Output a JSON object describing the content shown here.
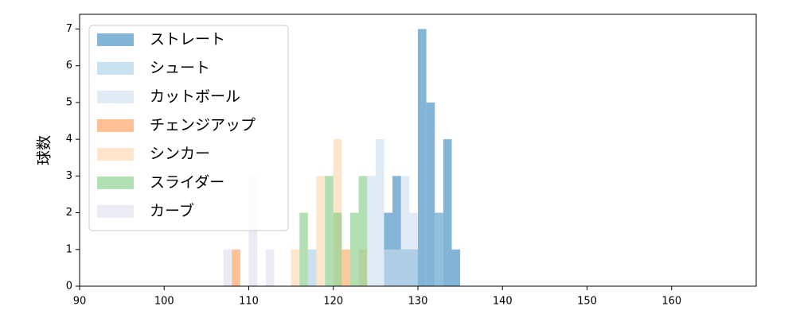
{
  "chart_data": {
    "type": "histogram",
    "y_label": "球数",
    "xlim": [
      90,
      170
    ],
    "xticks": [
      90,
      100,
      110,
      120,
      130,
      140,
      150,
      160
    ],
    "ylim": [
      0,
      7.4
    ],
    "yticks": [
      0,
      1,
      2,
      3,
      4,
      5,
      6,
      7
    ],
    "legend": "upper left",
    "series": [
      {
        "name": "ストレート",
        "color": "#1f77b4",
        "bins": [
          126,
          127,
          128,
          129,
          130,
          131,
          132,
          133,
          134,
          135
        ],
        "values": [
          2,
          3,
          1,
          1,
          7,
          5,
          2,
          4,
          1
        ]
      },
      {
        "name": "シュート",
        "color": "#9ecae1",
        "bins": [
          117,
          118,
          119,
          120,
          121,
          122,
          123,
          124,
          125,
          126,
          127,
          128,
          129,
          130,
          131,
          132,
          133
        ],
        "values": [
          1,
          0,
          0,
          0,
          0,
          0,
          0,
          0,
          0,
          1,
          1,
          1,
          1,
          0,
          0,
          2
        ]
      },
      {
        "name": "カットボール",
        "color": "#c6dbef",
        "bins": [
          124,
          125,
          126,
          127,
          128,
          129,
          130
        ],
        "values": [
          3,
          4,
          1,
          1,
          3,
          2
        ]
      },
      {
        "name": "チェンジアップ",
        "color": "#fd8d3c",
        "bins": [
          108,
          109,
          110,
          111,
          112,
          113,
          114,
          115,
          116,
          117,
          118,
          119,
          120,
          121,
          122
        ],
        "values": [
          1,
          0,
          0,
          0,
          0,
          0,
          0,
          0,
          0,
          0,
          0,
          0,
          0,
          1
        ]
      },
      {
        "name": "シンカー",
        "color": "#fdd0a2",
        "bins": [
          115,
          116,
          117,
          118,
          119,
          120,
          121,
          122,
          123,
          124
        ],
        "values": [
          1,
          0,
          0,
          3,
          0,
          4,
          1,
          0,
          1
        ]
      },
      {
        "name": "スライダー",
        "color": "#74c476",
        "bins": [
          116,
          117,
          118,
          119,
          120,
          121,
          122,
          123,
          124
        ],
        "values": [
          2,
          0,
          0,
          3,
          2,
          0,
          2,
          3
        ]
      },
      {
        "name": "カーブ",
        "color": "#dadaeb",
        "bins": [
          107,
          108,
          109,
          110,
          111,
          112,
          113
        ],
        "values": [
          1,
          0,
          0,
          3,
          0,
          1
        ]
      }
    ]
  }
}
